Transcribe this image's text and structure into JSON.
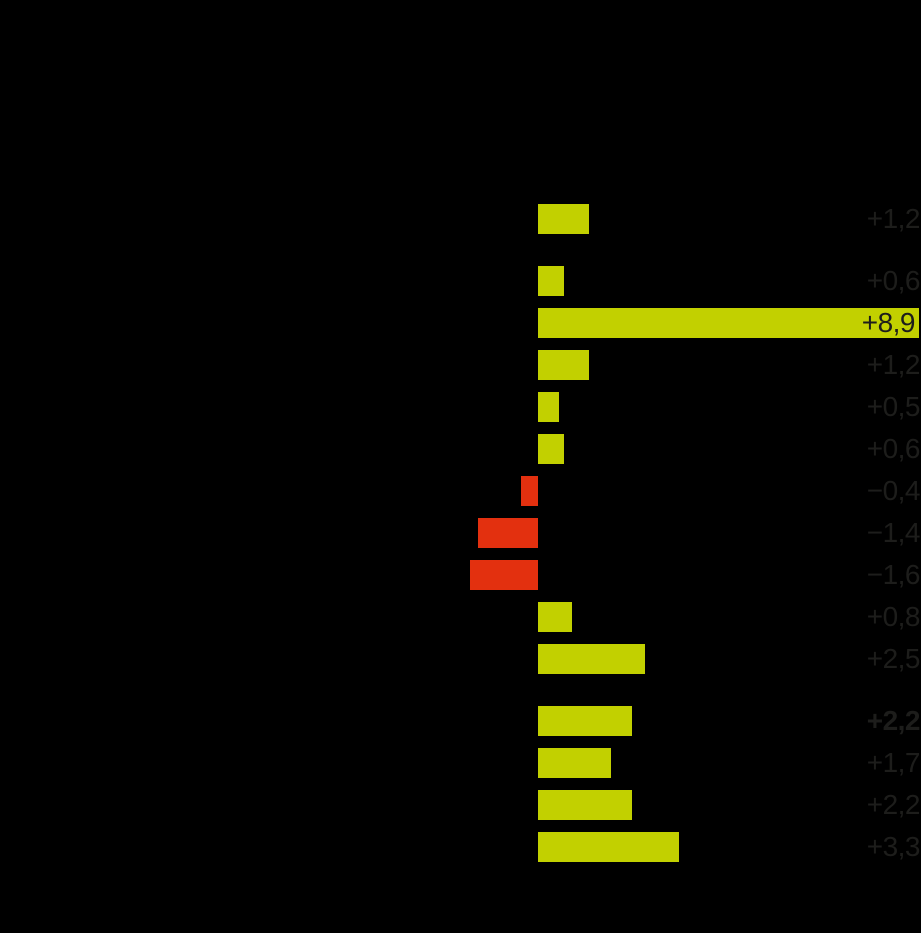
{
  "chart_data": {
    "type": "bar",
    "orientation": "horizontal",
    "title": "",
    "xlabel": "",
    "ylabel": "",
    "value_format": "signed number, comma decimal separator, one decimal place",
    "axis_range_estimated": [
      -12.6,
      9.0
    ],
    "grid": false,
    "legend": false,
    "category_labels_visible": false,
    "rows": [
      {
        "label": "+1,2",
        "value": 1.2,
        "bold": false,
        "gap_before": false,
        "label_on_bar": false
      },
      {
        "label": "+0,6",
        "value": 0.6,
        "bold": false,
        "gap_before": true,
        "label_on_bar": false
      },
      {
        "label": "+8,9",
        "value": 8.9,
        "bold": false,
        "gap_before": false,
        "label_on_bar": true
      },
      {
        "label": "+1,2",
        "value": 1.2,
        "bold": false,
        "gap_before": false,
        "label_on_bar": false
      },
      {
        "label": "+0,5",
        "value": 0.5,
        "bold": false,
        "gap_before": false,
        "label_on_bar": false
      },
      {
        "label": "+0,6",
        "value": 0.6,
        "bold": false,
        "gap_before": false,
        "label_on_bar": false
      },
      {
        "label": "−0,4",
        "value": -0.4,
        "bold": false,
        "gap_before": false,
        "label_on_bar": false
      },
      {
        "label": "−1,4",
        "value": -1.4,
        "bold": false,
        "gap_before": false,
        "label_on_bar": false
      },
      {
        "label": "−1,6",
        "value": -1.6,
        "bold": false,
        "gap_before": false,
        "label_on_bar": false
      },
      {
        "label": "+0,8",
        "value": 0.8,
        "bold": false,
        "gap_before": false,
        "label_on_bar": false
      },
      {
        "label": "+2,5",
        "value": 2.5,
        "bold": false,
        "gap_before": false,
        "label_on_bar": false
      },
      {
        "label": "+2,2",
        "value": 2.2,
        "bold": true,
        "gap_before": true,
        "label_on_bar": false
      },
      {
        "label": "+1,7",
        "value": 1.7,
        "bold": false,
        "gap_before": false,
        "label_on_bar": false
      },
      {
        "label": "+2,2",
        "value": 2.2,
        "bold": false,
        "gap_before": false,
        "label_on_bar": false
      },
      {
        "label": "+3,3",
        "value": 3.3,
        "bold": false,
        "gap_before": false,
        "label_on_bar": false
      }
    ],
    "colors": {
      "positive_bar": "#c2d000",
      "negative_bar": "#e3300f",
      "value_label": "#1d1d1b",
      "background": "#000000"
    }
  }
}
